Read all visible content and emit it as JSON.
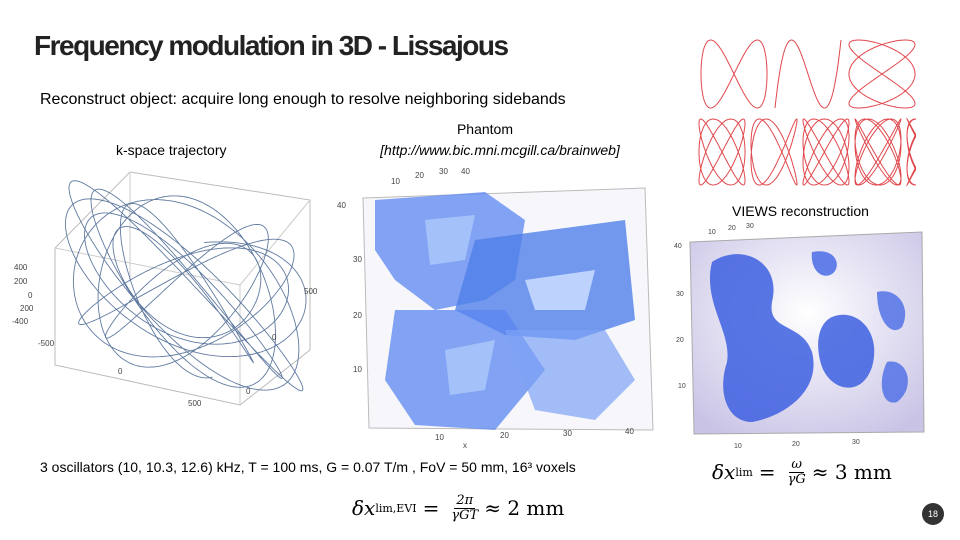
{
  "title": "Frequency modulation in 3D - Lissajous",
  "subtitle": "Reconstruct object: acquire long enough to resolve neighboring sidebands",
  "kspace": {
    "label": "k-space trajectory",
    "ticks_vertical": [
      "400",
      "200",
      "0",
      "200",
      "-400"
    ],
    "ticks_left": [
      "-500",
      "0"
    ],
    "ticks_bottom": [
      "0",
      "500"
    ],
    "ticks_right": [
      "500",
      "0"
    ]
  },
  "phantom": {
    "title": "Phantom",
    "url": "[http://www.bic.mni.mcgill.ca/brainweb]",
    "ticks_y": [
      "40",
      "30",
      "20",
      "10"
    ],
    "ticks_top": [
      "10",
      "20",
      "30",
      "40"
    ],
    "ticks_bottom": [
      "10",
      "20",
      "30",
      "40"
    ],
    "axis_x": "x"
  },
  "views": {
    "label": "VIEWS reconstruction",
    "ticks_y": [
      "40",
      "30",
      "20",
      "10"
    ],
    "ticks_top": [
      "10",
      "20",
      "30"
    ],
    "ticks_bottom": [
      "10",
      "20",
      "30"
    ]
  },
  "params": "3 oscillators (10, 10.3, 12.6) kHz, T = 100 ms, G = 0.07 T/m , FoV = 50 mm, 16³ voxels",
  "formula_lim": {
    "lhs_var": "δx",
    "lhs_sub": "lim",
    "num": "ω",
    "den": "γG",
    "rhs": "≈ 3 mm"
  },
  "formula_evi": {
    "lhs_var": "δx",
    "lhs_sub": "lim,EVI",
    "num": "2π",
    "den": "γGT",
    "rhs": "≈ 2 mm"
  },
  "slide_number": "18",
  "colors": {
    "lissajous": "#e0474c",
    "trajectory": "#4f6c96",
    "volume": "#4f7fe8"
  }
}
